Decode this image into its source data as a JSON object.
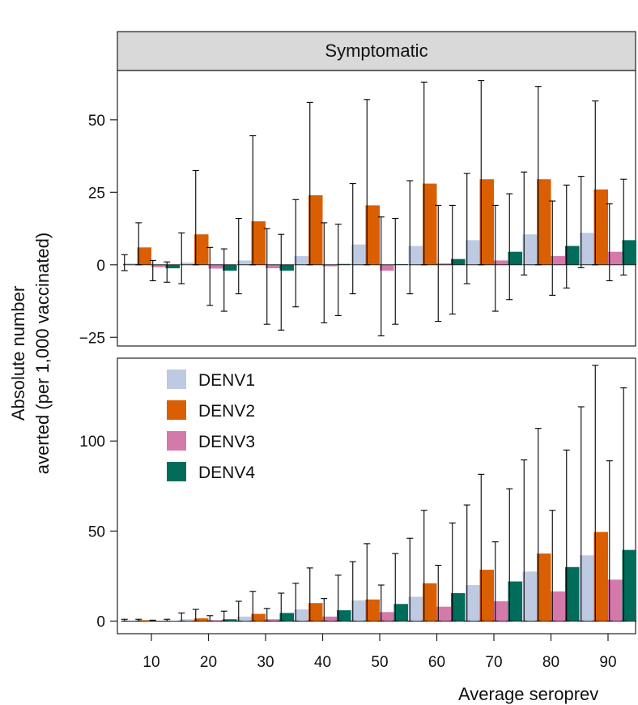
{
  "chart_data": {
    "type": "bar",
    "strip_title": "Symptomatic",
    "ylabel_line1": "Absolute number",
    "ylabel_line2": "averted (per 1,000 vaccinated)",
    "xlabel": "Average seroprev",
    "categories": [
      "10",
      "20",
      "30",
      "40",
      "50",
      "60",
      "70",
      "80",
      "90"
    ],
    "colors": {
      "DENV1": "#bec9e2",
      "DENV2": "#d95f02",
      "DENV3": "#d47aab",
      "DENV4": "#016c59"
    },
    "legend": {
      "placement": "top-left",
      "entries": [
        "DENV1",
        "DENV2",
        "DENV3",
        "DENV4"
      ]
    },
    "panels": [
      {
        "name": "top",
        "ylim": [
          -28,
          67
        ],
        "yticks": [
          -25,
          0,
          25,
          50
        ],
        "ytick_labels": [
          "−25",
          "0",
          "25",
          "50"
        ],
        "series": [
          {
            "name": "DENV1",
            "values": [
              0.5,
              0.8,
              1.5,
              3.0,
              7.0,
              6.5,
              8.5,
              10.5,
              11.0
            ],
            "err_lo": [
              -2.0,
              -6.5,
              -10.0,
              -14.5,
              -10.0,
              -10.0,
              -6.5,
              -3.5,
              -1.0
            ],
            "err_hi": [
              3.5,
              11.0,
              16.0,
              22.5,
              28.0,
              29.0,
              31.5,
              32.0,
              30.5
            ]
          },
          {
            "name": "DENV2",
            "values": [
              6.0,
              10.5,
              15.0,
              24.0,
              20.5,
              28.0,
              29.5,
              29.5,
              26.0
            ],
            "err_lo": [
              0.0,
              0.0,
              0.0,
              0.0,
              0.0,
              0.0,
              0.0,
              0.0,
              0.0
            ],
            "err_hi": [
              14.5,
              32.5,
              44.5,
              56.0,
              57.0,
              63.0,
              63.5,
              61.5,
              56.5
            ]
          },
          {
            "name": "DENV3",
            "values": [
              -0.8,
              -1.3,
              -1.2,
              -0.5,
              -2.0,
              0.5,
              1.5,
              3.0,
              4.5
            ],
            "err_lo": [
              -5.5,
              -14.0,
              -20.5,
              -20.0,
              -24.5,
              -19.5,
              -16.0,
              -10.5,
              -5.5
            ],
            "err_hi": [
              1.5,
              6.0,
              12.5,
              14.5,
              16.5,
              20.5,
              20.5,
              22.0,
              21.0
            ]
          },
          {
            "name": "DENV4",
            "values": [
              -1.2,
              -2.0,
              -2.0,
              0.3,
              0.2,
              2.0,
              4.5,
              6.5,
              8.5
            ],
            "err_lo": [
              -6.0,
              -16.0,
              -22.5,
              -17.5,
              -20.5,
              -17.0,
              -12.0,
              -8.0,
              -3.5
            ],
            "err_hi": [
              1.0,
              5.5,
              10.5,
              14.0,
              16.0,
              20.5,
              24.5,
              27.5,
              29.5
            ]
          }
        ]
      },
      {
        "name": "bottom",
        "ylim": [
          -7,
          146
        ],
        "yticks": [
          0,
          50,
          100
        ],
        "ytick_labels": [
          "0",
          "50",
          "100"
        ],
        "series": [
          {
            "name": "DENV1",
            "values": [
              0.3,
              1.0,
              2.5,
              6.5,
              11.5,
              13.5,
              20.0,
              27.5,
              36.5
            ],
            "err_lo": [
              0,
              0,
              0,
              0,
              0,
              0,
              0,
              0,
              0
            ],
            "err_hi": [
              1.0,
              4.5,
              11.0,
              21.0,
              33.0,
              46.0,
              64.5,
              89.5,
              119.0
            ]
          },
          {
            "name": "DENV2",
            "values": [
              0.5,
              1.5,
              4.0,
              10.0,
              12.0,
              21.0,
              28.5,
              37.5,
              49.5
            ],
            "err_lo": [
              0,
              0,
              0,
              0,
              0,
              0,
              0,
              0,
              0
            ],
            "err_hi": [
              1.0,
              6.5,
              16.5,
              29.5,
              43.0,
              61.5,
              81.5,
              107.0,
              142.0
            ]
          },
          {
            "name": "DENV3",
            "values": [
              0.1,
              0.5,
              1.0,
              2.5,
              5.0,
              8.0,
              11.0,
              16.5,
              23.0
            ],
            "err_lo": [
              0,
              0,
              0,
              0,
              0,
              0,
              0,
              0,
              0
            ],
            "err_hi": [
              0.5,
              3.0,
              7.0,
              12.5,
              20.0,
              31.0,
              44.0,
              61.5,
              89.0
            ]
          },
          {
            "name": "DENV4",
            "values": [
              0.2,
              1.0,
              4.5,
              6.0,
              9.5,
              15.5,
              22.0,
              30.0,
              39.5
            ],
            "err_lo": [
              0,
              0,
              0,
              0,
              0,
              0,
              0,
              0,
              0
            ],
            "err_hi": [
              1.0,
              5.5,
              15.5,
              25.5,
              37.5,
              54.5,
              73.5,
              95.0,
              129.5
            ]
          }
        ]
      }
    ]
  }
}
